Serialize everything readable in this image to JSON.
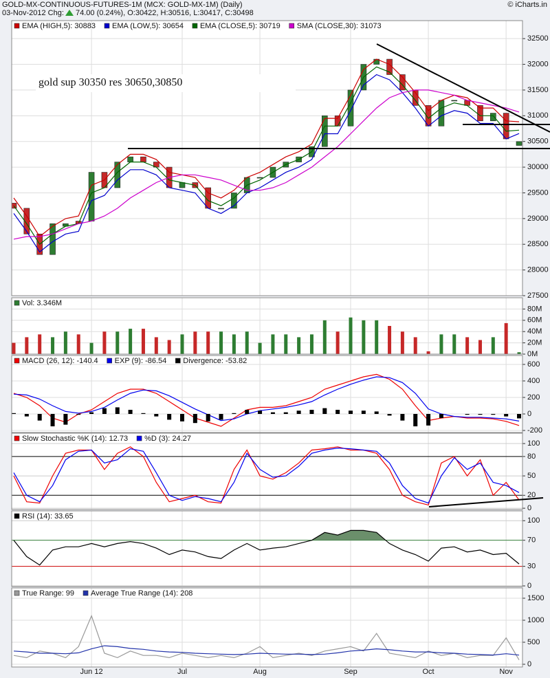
{
  "header": {
    "title": "GOLD-MX-CONTINUOUS-FUTURES-1M (MCX: GOLD-MX-1M) (Daily)",
    "date": "03-Nov-2012 Chg:",
    "change": "74.00 (0.24%), O:30422, H:30516, L:30417, C:30498",
    "credit": "© iCharts.in"
  },
  "chart_data": [
    {
      "type": "candlestick",
      "annotation": "gold sup 30350 res 30650,30850",
      "ylim": [
        27500,
        32850
      ],
      "yticks": [
        27500,
        28000,
        28500,
        29000,
        29500,
        30000,
        30500,
        31000,
        31500,
        32000,
        32500
      ],
      "grid": true,
      "series": [
        {
          "kind": "candle",
          "color": "#2e7d32",
          "down_color": "#c62828",
          "open": [
            29300,
            29200,
            28700,
            28300,
            28850,
            28950,
            28950,
            29900,
            29600,
            30100,
            30200,
            30100,
            30000,
            29600,
            29700,
            29600,
            29200,
            29200,
            29500,
            29800,
            29800,
            30000,
            30100,
            30200,
            30400,
            31000,
            30800,
            31500,
            32000,
            32100,
            31800,
            31500,
            31200,
            30800,
            31300,
            31300,
            31200,
            30900,
            31050,
            30422
          ],
          "close": [
            29200,
            28700,
            28300,
            28900,
            28900,
            28900,
            29900,
            29600,
            30100,
            30200,
            30100,
            30000,
            29600,
            29700,
            29600,
            29200,
            29200,
            29500,
            29800,
            29800,
            30000,
            30100,
            30200,
            30400,
            31000,
            30800,
            31500,
            32000,
            32100,
            31800,
            31500,
            31200,
            30800,
            31300,
            31300,
            31200,
            30900,
            31050,
            30550,
            30498
          ]
        },
        {
          "kind": "line",
          "name": "EMA (HIGH,5): 30883",
          "color": "#cc0000",
          "values": [
            29400,
            29050,
            28650,
            28850,
            29000,
            29050,
            29650,
            29750,
            30050,
            30250,
            30250,
            30150,
            29900,
            29850,
            29800,
            29500,
            29400,
            29550,
            29800,
            29900,
            30050,
            30200,
            30300,
            30450,
            30950,
            30950,
            31400,
            31900,
            32100,
            32000,
            31750,
            31450,
            31100,
            31300,
            31400,
            31350,
            31150,
            31150,
            30900,
            30883
          ]
        },
        {
          "kind": "line",
          "name": "EMA (LOW,5): 30654",
          "color": "#0000cc",
          "values": [
            29100,
            28750,
            28350,
            28550,
            28700,
            28750,
            29350,
            29450,
            29750,
            29950,
            29950,
            29850,
            29600,
            29550,
            29500,
            29200,
            29100,
            29250,
            29500,
            29600,
            29750,
            29900,
            30000,
            30150,
            30650,
            30650,
            31100,
            31600,
            31800,
            31700,
            31450,
            31150,
            30800,
            31000,
            31100,
            31050,
            30850,
            30850,
            30550,
            30654
          ]
        },
        {
          "kind": "line",
          "name": "EMA (CLOSE,5): 30719",
          "color": "#006600",
          "values": [
            29250,
            28900,
            28500,
            28700,
            28850,
            28900,
            29500,
            29600,
            29900,
            30100,
            30100,
            30000,
            29750,
            29700,
            29650,
            29350,
            29250,
            29400,
            29650,
            29750,
            29900,
            30050,
            30150,
            30300,
            30800,
            30800,
            31250,
            31750,
            31950,
            31850,
            31600,
            31300,
            30950,
            31150,
            31250,
            31200,
            31000,
            31000,
            30700,
            30719
          ]
        },
        {
          "kind": "line",
          "name": "SMA (CLOSE,30): 31073",
          "color": "#cc00cc",
          "values": [
            28600,
            28650,
            28650,
            28700,
            28800,
            28900,
            28950,
            29050,
            29200,
            29400,
            29550,
            29700,
            29800,
            29850,
            29850,
            29800,
            29750,
            29650,
            29550,
            29550,
            29600,
            29700,
            29850,
            30000,
            30200,
            30400,
            30650,
            30900,
            31150,
            31350,
            31450,
            31500,
            31500,
            31450,
            31400,
            31300,
            31250,
            31200,
            31150,
            31073
          ]
        }
      ]
    },
    {
      "type": "bar",
      "ylim": [
        0,
        100
      ],
      "yticks": [
        {
          "value": 0,
          "label": "0M"
        },
        {
          "value": 20,
          "label": "20M"
        },
        {
          "value": 40,
          "label": "40M"
        },
        {
          "value": 60,
          "label": "60M"
        },
        {
          "value": 80,
          "label": "80M"
        }
      ],
      "grid": true,
      "series": [
        {
          "kind": "bar",
          "name": "Vol: 3.346M",
          "color": "#2e7d32",
          "down_color": "#c62828",
          "values": [
            20,
            30,
            35,
            30,
            40,
            35,
            20,
            40,
            40,
            45,
            45,
            30,
            25,
            35,
            40,
            40,
            40,
            35,
            40,
            20,
            35,
            35,
            30,
            35,
            60,
            40,
            65,
            60,
            60,
            50,
            40,
            30,
            5,
            35,
            35,
            30,
            25,
            30,
            55,
            3.346
          ]
        }
      ]
    },
    {
      "type": "line",
      "ylim": [
        -225,
        708
      ],
      "yticks": [
        -200,
        0,
        200,
        400,
        600
      ],
      "grid": true,
      "series": [
        {
          "kind": "line",
          "name": "MACD (26, 12): -140.4",
          "color": "#ee0000",
          "values": [
            250,
            200,
            100,
            -50,
            -100,
            0,
            50,
            150,
            250,
            300,
            300,
            250,
            150,
            50,
            -50,
            -100,
            -150,
            -50,
            50,
            80,
            80,
            100,
            150,
            200,
            300,
            350,
            400,
            450,
            480,
            420,
            300,
            100,
            -80,
            -50,
            -30,
            -50,
            -50,
            -60,
            -90,
            -140.4
          ]
        },
        {
          "kind": "line",
          "name": "EXP (9): -86.54",
          "color": "#0000ee",
          "values": [
            240,
            230,
            180,
            100,
            30,
            10,
            30,
            80,
            170,
            250,
            290,
            280,
            220,
            140,
            60,
            -10,
            -80,
            -60,
            0,
            40,
            60,
            80,
            110,
            150,
            230,
            300,
            360,
            410,
            450,
            440,
            380,
            250,
            60,
            0,
            -30,
            -40,
            -40,
            -50,
            -60,
            -86.54
          ]
        },
        {
          "kind": "bar",
          "name": "Divergence: -53.82",
          "color": "#000000",
          "values": [
            10,
            -30,
            -80,
            -150,
            -130,
            -10,
            20,
            70,
            80,
            50,
            10,
            -30,
            -70,
            -90,
            -110,
            -90,
            -70,
            10,
            50,
            40,
            20,
            20,
            40,
            50,
            70,
            50,
            40,
            40,
            30,
            -20,
            -80,
            -150,
            -140,
            -50,
            0,
            -10,
            -10,
            -10,
            -30,
            -53.82
          ]
        }
      ]
    },
    {
      "type": "line",
      "ylim": [
        -2,
        116
      ],
      "yticks": [
        0,
        20,
        50,
        80,
        100
      ],
      "grid": true,
      "tick_line_colors": [
        "#cccccc",
        "#000000",
        "#cccccc",
        "#000000",
        "#cccccc"
      ],
      "series": [
        {
          "kind": "line",
          "name": "Slow Stochastic %K (14): 12.73",
          "color": "#ee0000",
          "values": [
            50,
            10,
            8,
            50,
            85,
            90,
            90,
            60,
            85,
            95,
            80,
            40,
            10,
            15,
            20,
            10,
            8,
            60,
            90,
            50,
            45,
            55,
            70,
            90,
            92,
            95,
            90,
            90,
            85,
            60,
            20,
            10,
            5,
            70,
            80,
            50,
            75,
            20,
            40,
            12.73
          ]
        },
        {
          "kind": "line",
          "name": "%D (3): 24.27",
          "color": "#0000ee",
          "values": [
            55,
            20,
            10,
            35,
            75,
            88,
            90,
            70,
            75,
            92,
            88,
            55,
            20,
            12,
            18,
            15,
            10,
            40,
            85,
            60,
            48,
            50,
            65,
            85,
            90,
            93,
            92,
            90,
            88,
            70,
            35,
            15,
            8,
            50,
            78,
            60,
            70,
            40,
            35,
            24.27
          ]
        }
      ]
    },
    {
      "type": "line",
      "ylim": [
        -1,
        115
      ],
      "yticks": [
        0,
        30,
        70,
        100
      ],
      "grid": true,
      "tick_line_colors": [
        "#cccccc",
        "#cc0000",
        "#2e7d32",
        "#cccccc"
      ],
      "series": [
        {
          "kind": "line",
          "name": "RSI (14): 33.65",
          "color": "#000000",
          "fill_above": 70,
          "fill_color": "#6b8f6b",
          "values": [
            70,
            45,
            32,
            55,
            60,
            60,
            65,
            60,
            65,
            68,
            65,
            58,
            48,
            55,
            52,
            45,
            42,
            55,
            65,
            55,
            58,
            60,
            65,
            70,
            82,
            78,
            85,
            85,
            82,
            65,
            55,
            48,
            38,
            58,
            60,
            52,
            55,
            48,
            50,
            33.65
          ]
        }
      ]
    },
    {
      "type": "line",
      "ylim": [
        -62,
        1734
      ],
      "yticks": [
        0,
        500,
        1000,
        1500
      ],
      "grid": true,
      "categories": [
        null,
        null,
        null,
        null,
        null,
        null,
        "Jun 12",
        null,
        null,
        null,
        null,
        null,
        null,
        "Jul",
        null,
        null,
        null,
        null,
        null,
        "Aug",
        null,
        null,
        null,
        null,
        null,
        null,
        "Sep",
        null,
        null,
        null,
        null,
        null,
        "Oct",
        null,
        null,
        null,
        null,
        null,
        "Nov",
        null
      ],
      "series": [
        {
          "kind": "line",
          "name": "True Range: 99",
          "color": "#999999",
          "values": [
            200,
            150,
            300,
            250,
            150,
            400,
            1100,
            250,
            150,
            300,
            200,
            200,
            150,
            250,
            200,
            150,
            200,
            150,
            250,
            400,
            150,
            200,
            250,
            200,
            300,
            350,
            400,
            300,
            700,
            250,
            200,
            150,
            300,
            200,
            250,
            150,
            200,
            200,
            600,
            99
          ]
        },
        {
          "kind": "line",
          "name": "Average True Range (14): 208",
          "color": "#2233aa",
          "values": [
            300,
            280,
            250,
            250,
            240,
            260,
            350,
            420,
            400,
            360,
            340,
            300,
            280,
            270,
            250,
            240,
            230,
            220,
            230,
            250,
            240,
            230,
            230,
            220,
            230,
            260,
            300,
            320,
            350,
            330,
            300,
            280,
            280,
            260,
            250,
            230,
            220,
            210,
            240,
            208
          ]
        }
      ]
    }
  ]
}
